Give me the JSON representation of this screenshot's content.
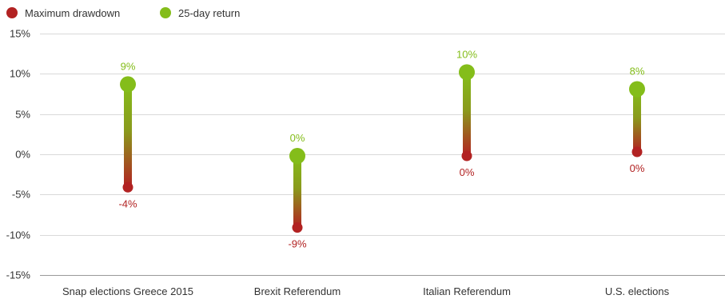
{
  "chart_data": {
    "type": "dumbbell",
    "legend_position": "top-left",
    "grid": true,
    "ylim": [
      -15,
      15
    ],
    "yticks": [
      15,
      10,
      5,
      0,
      -5,
      -10,
      -15
    ],
    "ytick_labels": [
      "15%",
      "10%",
      "5%",
      "0%",
      "-5%",
      "-10%",
      "-15%"
    ],
    "categories": [
      "Snap elections Greece 2015",
      "Brexit Referendum",
      "Italian Referendum",
      "U.S. elections"
    ],
    "series": [
      {
        "name": "Maximum drawdown",
        "color": "#b22222",
        "values": [
          -4.1,
          -9.1,
          -0.2,
          0.3
        ],
        "labels": [
          "-4%",
          "-9%",
          "0%",
          "0%"
        ]
      },
      {
        "name": "25-day return",
        "color": "#84bd1a",
        "values": [
          8.7,
          -0.2,
          10.2,
          8.1
        ],
        "labels": [
          "9%",
          "0%",
          "10%",
          "8%"
        ]
      }
    ]
  }
}
